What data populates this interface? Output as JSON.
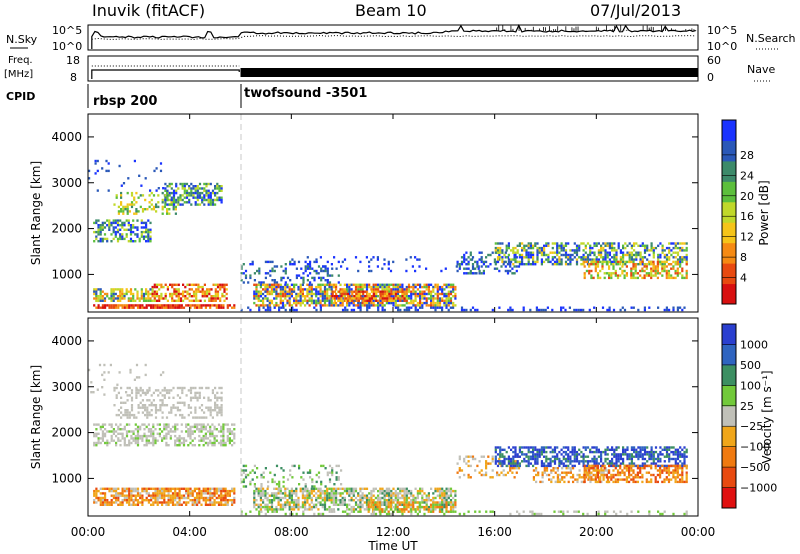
{
  "header": {
    "station": "Inuvik (fitACF)",
    "beam": "Beam 10",
    "date": "07/Jul/2013"
  },
  "top_panels": {
    "nsky_label": "N.Sky",
    "nsky_ticks": [
      "10^5",
      "10^0"
    ],
    "nsearch_label": "N.Search",
    "nsearch_ticks": [
      "10^5",
      "10^0"
    ],
    "freq_label_1": "Freq.",
    "freq_label_2": "[MHz]",
    "freq_ticks": [
      "18",
      "8"
    ],
    "nave_label": "Nave",
    "nave_ticks": [
      "60",
      "0"
    ],
    "cpid_label": "CPID",
    "cpid_segments": [
      "rbsp 200",
      "twofsound -3501"
    ]
  },
  "chart_data": [
    {
      "type": "heatmap",
      "name": "power",
      "ylabel": "Slant Range [km]",
      "ylim": [
        180,
        4500
      ],
      "yticks": [
        "1000",
        "2000",
        "3000",
        "4000"
      ],
      "xlim_hours": [
        0,
        24
      ],
      "colorbar": {
        "label": "Power [dB]",
        "ticks": [
          "4",
          "8",
          "12",
          "16",
          "20",
          "24",
          "28"
        ],
        "colors": [
          "#1a33ff",
          "#2a58b8",
          "#3c8a6a",
          "#5cbf3c",
          "#c0d82a",
          "#f5c419",
          "#f58a13",
          "#e84a10",
          "#d81010"
        ]
      }
    },
    {
      "type": "heatmap",
      "name": "velocity",
      "ylabel": "Slant Range [km]",
      "ylim": [
        180,
        4500
      ],
      "yticks": [
        "1000",
        "2000",
        "3000",
        "4000"
      ],
      "xlim_hours": [
        0,
        24
      ],
      "colorbar": {
        "label": "Velocity [m s⁻¹]",
        "ticks": [
          "1000",
          "500",
          "100",
          "25",
          "−25",
          "−100",
          "−500",
          "−1000"
        ],
        "colors": [
          "#2a3fcf",
          "#2f64c0",
          "#3c8f62",
          "#72c93a",
          "#c0c0b8",
          "#f0a61a",
          "#f07a10",
          "#e84a10",
          "#e01010"
        ]
      }
    }
  ],
  "xaxis": {
    "ticks": [
      "00:00",
      "04:00",
      "08:00",
      "12:00",
      "16:00",
      "20:00",
      "00:00"
    ],
    "label": "Time UT"
  }
}
